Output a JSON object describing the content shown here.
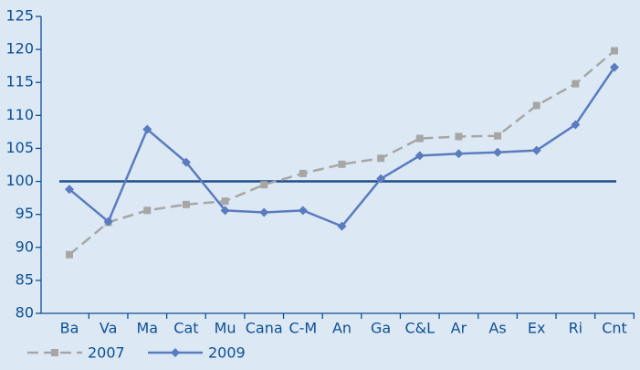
{
  "chart_data": {
    "type": "line",
    "categories": [
      "Ba",
      "Va",
      "Ma",
      "Cat",
      "Mu",
      "Cana",
      "C-M",
      "An",
      "Ga",
      "C&L",
      "Ar",
      "As",
      "Ex",
      "Ri",
      "Cnt"
    ],
    "series": [
      {
        "name": "2007",
        "color": "#a6a6a6",
        "dash": true,
        "marker": "square",
        "values": [
          88.9,
          93.8,
          95.6,
          96.5,
          97.0,
          99.5,
          101.2,
          102.6,
          103.5,
          106.5,
          106.8,
          106.9,
          111.5,
          114.8,
          119.8
        ]
      },
      {
        "name": "2009",
        "color": "#5b7bbf",
        "dash": false,
        "marker": "diamond",
        "values": [
          98.8,
          93.9,
          107.9,
          102.9,
          95.6,
          95.3,
          95.6,
          93.2,
          100.4,
          103.9,
          104.2,
          104.4,
          104.7,
          108.6,
          117.3
        ]
      }
    ],
    "hline": {
      "value": 100,
      "color": "#1f4e8c"
    },
    "ylim": [
      80,
      125
    ],
    "yticks": [
      80,
      85,
      90,
      95,
      100,
      105,
      110,
      115,
      120,
      125
    ],
    "grid": false,
    "legend": "bottom-left"
  }
}
